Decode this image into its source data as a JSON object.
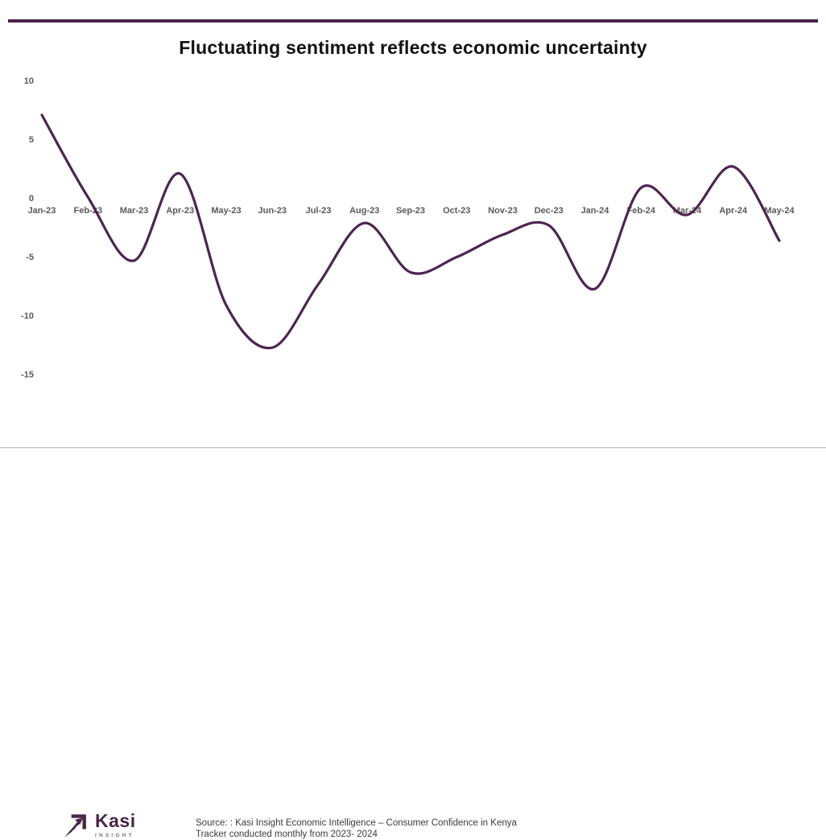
{
  "chart_data": {
    "type": "line",
    "title": "Fluctuating sentiment reflects economic uncertainty",
    "categories": [
      "Jan-23",
      "Feb-23",
      "Mar-23",
      "Apr-23",
      "May-23",
      "Jun-23",
      "Jul-23",
      "Aug-23",
      "Sep-23",
      "Oct-23",
      "Nov-23",
      "Dec-23",
      "Jan-24",
      "Feb-24",
      "Mar-24",
      "Apr-24",
      "May-24"
    ],
    "values": [
      7.2,
      0.2,
      -5.2,
      2.2,
      -9.0,
      -12.6,
      -7.2,
      -2.0,
      -6.2,
      -4.9,
      -3.0,
      -2.2,
      -7.6,
      1.0,
      -1.3,
      2.8,
      -3.5
    ],
    "yticks": [
      10,
      5,
      0,
      -5,
      -10,
      -15
    ],
    "ylim": [
      -15,
      10
    ],
    "smooth": true,
    "grid": false,
    "legend": "none",
    "line_color": "#4e2452",
    "xlabel": "",
    "ylabel": ""
  },
  "footer": {
    "brand_name": "Kasi",
    "brand_tagline": "INSIGHT",
    "source_line1": "Source: : Kasi Insight Economic Intelligence – Consumer Confidence in Kenya",
    "source_line2": "Tracker conducted monthly from 2023- 2024"
  },
  "colors": {
    "accent_purple": "#4a2149",
    "axis_text": "#595959",
    "bottom_rule": "#b3b3b3"
  }
}
